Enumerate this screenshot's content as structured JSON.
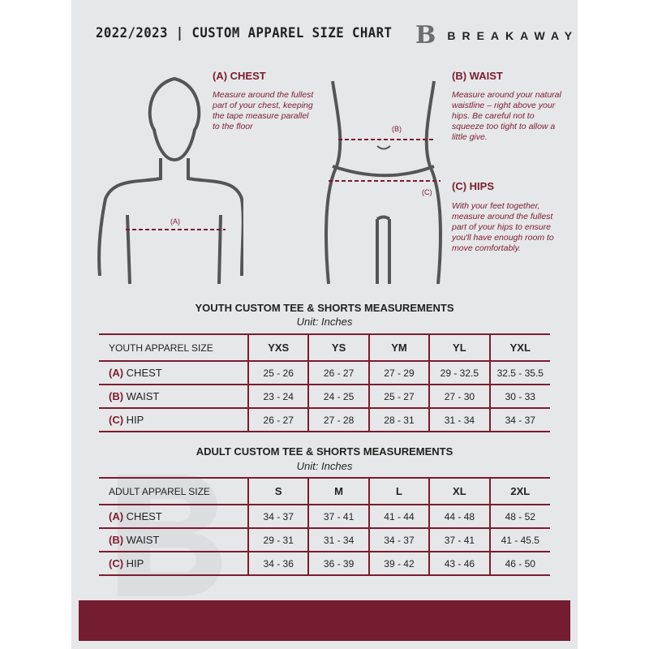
{
  "header": {
    "title": "2022/2023 | CUSTOM APPAREL SIZE CHART",
    "logo_mark": "B",
    "brand": "BREAKAWAY"
  },
  "measures": {
    "chest": {
      "title": "(A) CHEST",
      "desc": "Measure around the fullest part of your chest, keeping the tape measure parallel to the floor",
      "marker": "(A)"
    },
    "waist": {
      "title": "(B) WAIST",
      "desc": "Measure around your natural waistline – right above your hips. Be careful not to squeeze too tight to allow a little give.",
      "marker": "(B)"
    },
    "hips": {
      "title": "(C) HIPS",
      "desc": "With your feet together, measure around the fullest part of your hips to ensure you'll have enough room to move comfortably.",
      "marker": "(C)"
    }
  },
  "youth": {
    "title": "YOUTH CUSTOM TEE & SHORTS MEASUREMENTS",
    "unit": "Unit: Inches",
    "header": "YOUTH APPAREL SIZE",
    "sizes": [
      "YXS",
      "YS",
      "YM",
      "YL",
      "YXL"
    ],
    "rows": [
      {
        "letter": "(A)",
        "label": "CHEST",
        "values": [
          "25 - 26",
          "26 - 27",
          "27 - 29",
          "29 - 32.5",
          "32.5 - 35.5"
        ]
      },
      {
        "letter": "(B)",
        "label": "WAIST",
        "values": [
          "23 - 24",
          "24 - 25",
          "25 - 27",
          "27 - 30",
          "30 - 33"
        ]
      },
      {
        "letter": "(C)",
        "label": "HIP",
        "values": [
          "26 - 27",
          "27 - 28",
          "28 - 31",
          "31 - 34",
          "34 - 37"
        ]
      }
    ]
  },
  "adult": {
    "title": "ADULT CUSTOM TEE & SHORTS MEASUREMENTS",
    "unit": "Unit: Inches",
    "header": "ADULT APPAREL SIZE",
    "sizes": [
      "S",
      "M",
      "L",
      "XL",
      "2XL"
    ],
    "rows": [
      {
        "letter": "(A)",
        "label": "CHEST",
        "values": [
          "34 - 37",
          "37 - 41",
          "41 - 44",
          "44 - 48",
          "48 - 52"
        ]
      },
      {
        "letter": "(B)",
        "label": "WAIST",
        "values": [
          "29 - 31",
          "31 - 34",
          "34 - 37",
          "37 - 41",
          "41 - 45.5"
        ]
      },
      {
        "letter": "(C)",
        "label": "HIP",
        "values": [
          "34 - 36",
          "36 - 39",
          "39 - 42",
          "43 - 46",
          "46 - 50"
        ]
      }
    ]
  },
  "colors": {
    "accent": "#7a1c31",
    "panel": "#e6e7e8"
  }
}
